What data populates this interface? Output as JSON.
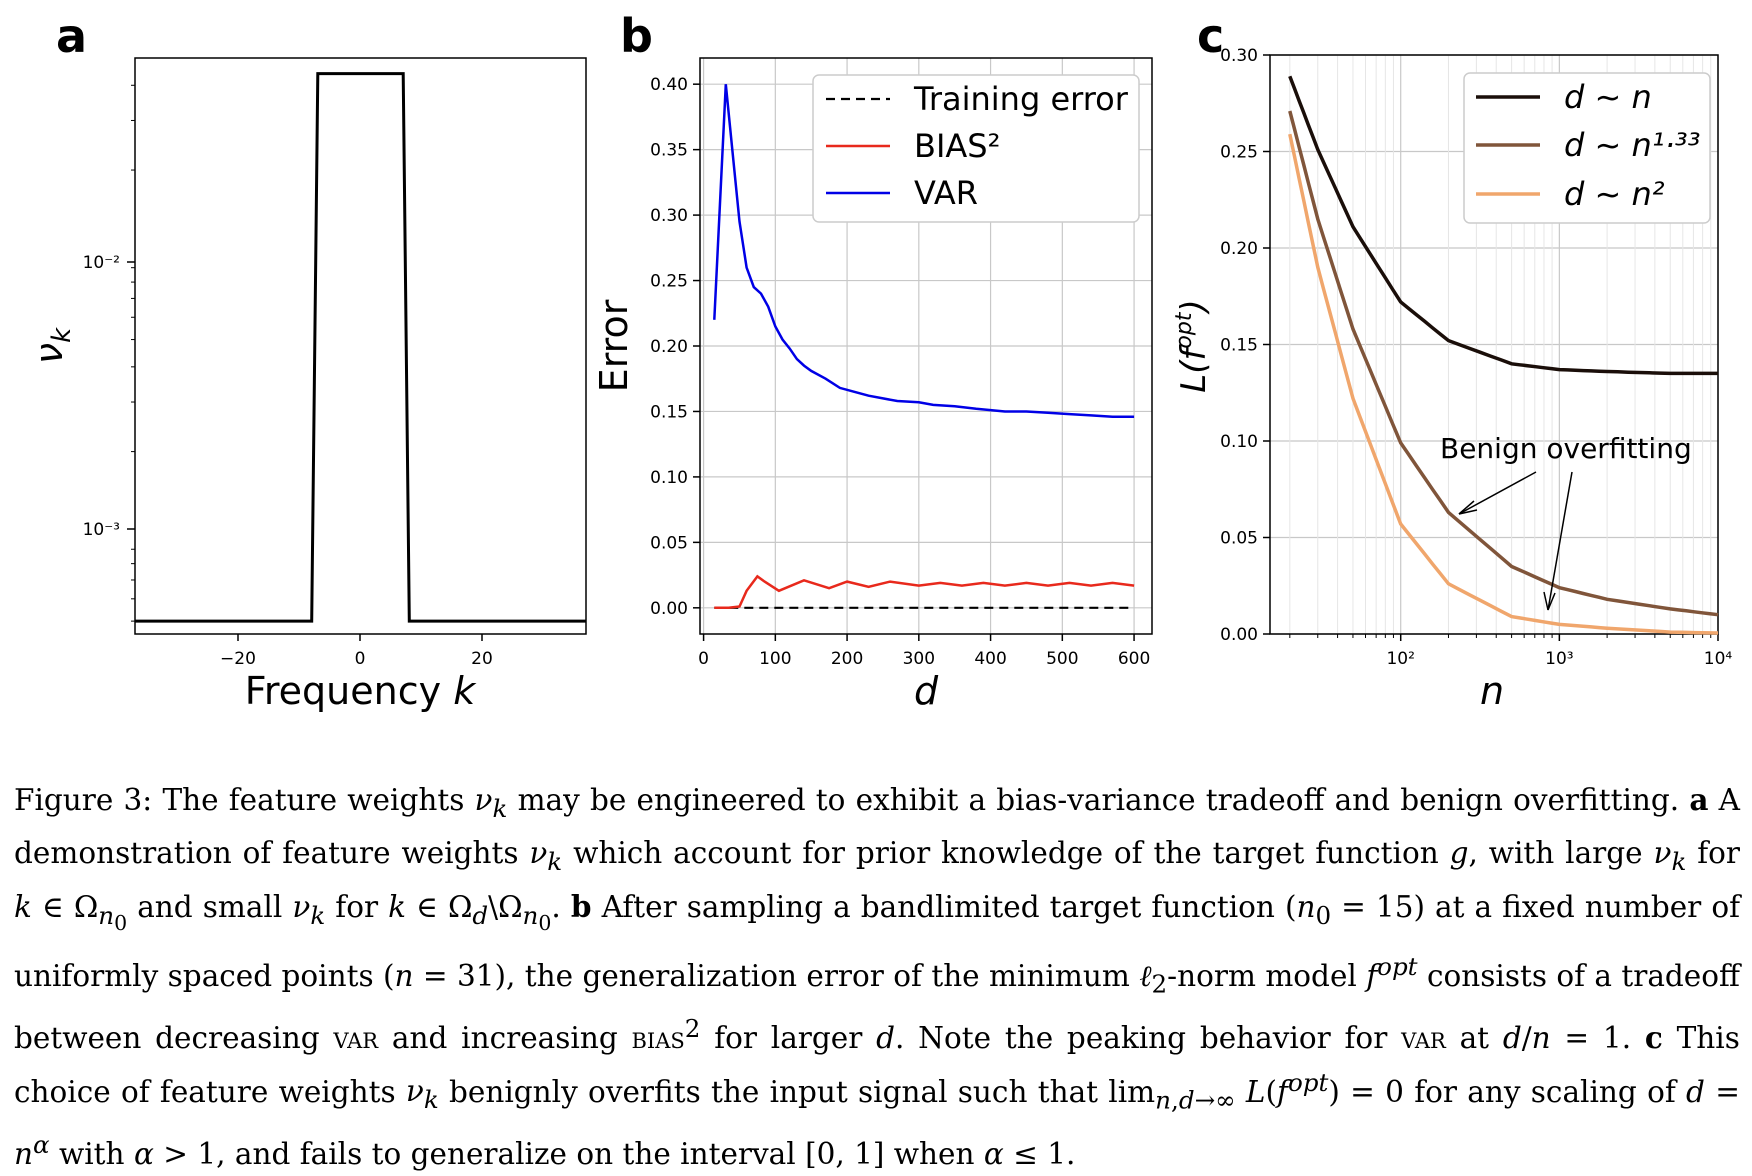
{
  "colors": {
    "black": "#000000",
    "red": "#e8291c",
    "blue": "#0000e6",
    "grid": "#c8c8c8",
    "dn1": "#1a0e09",
    "dn133": "#80553a",
    "dn2": "#f0a66c"
  },
  "panels": {
    "a": {
      "letter": "a",
      "xlabel": "Frequency k",
      "ylabel": "ν_k",
      "yticks": [
        "10⁻²",
        "10⁻³"
      ],
      "xticks": [
        "−20",
        "0",
        "20"
      ]
    },
    "b": {
      "letter": "b",
      "xlabel": "d",
      "ylabel": "Error",
      "yticks": [
        "0.00",
        "0.05",
        "0.10",
        "0.15",
        "0.20",
        "0.25",
        "0.30",
        "0.35",
        "0.40"
      ],
      "xticks": [
        "0",
        "100",
        "200",
        "300",
        "400",
        "500",
        "600"
      ],
      "legend": [
        "Training error",
        "BIAS²",
        "VAR"
      ]
    },
    "c": {
      "letter": "c",
      "xlabel": "n",
      "ylabel": "L(f^opt)",
      "yticks": [
        "0.00",
        "0.05",
        "0.10",
        "0.15",
        "0.20",
        "0.25",
        "0.30"
      ],
      "xticks": [
        "10²",
        "10³",
        "10⁴"
      ],
      "legend": [
        "d ~ n",
        "d ~ n¹·³³",
        "d ~ n²"
      ],
      "annotation": "Benign overfitting"
    }
  },
  "chart_data": [
    {
      "type": "line",
      "panel": "a",
      "title": "",
      "xlabel": "Frequency k",
      "ylabel": "ν_k",
      "yscale": "log",
      "xlim": [
        -37,
        37
      ],
      "ylim": [
        0.00045,
        0.05
      ],
      "series": [
        {
          "name": "ν_k",
          "x": [
            -37,
            -8,
            -7,
            7,
            8,
            37
          ],
          "y": [
            0.0005,
            0.0005,
            0.044,
            0.044,
            0.0005,
            0.0005
          ]
        }
      ]
    },
    {
      "type": "line",
      "panel": "b",
      "xlabel": "d",
      "ylabel": "Error",
      "xlim": [
        -5,
        625
      ],
      "ylim": [
        -0.02,
        0.42
      ],
      "series": [
        {
          "name": "Training error",
          "x": [
            15,
            600
          ],
          "y": [
            0,
            0
          ]
        },
        {
          "name": "BIAS²",
          "x": [
            15,
            35,
            50,
            60,
            75,
            85,
            105,
            140,
            175,
            200,
            230,
            260,
            300,
            330,
            360,
            390,
            420,
            450,
            480,
            510,
            540,
            570,
            600
          ],
          "y": [
            0,
            0,
            0.001,
            0.013,
            0.024,
            0.02,
            0.013,
            0.021,
            0.015,
            0.02,
            0.016,
            0.02,
            0.017,
            0.019,
            0.017,
            0.019,
            0.017,
            0.019,
            0.017,
            0.019,
            0.017,
            0.019,
            0.017
          ]
        },
        {
          "name": "VAR",
          "x": [
            15,
            31,
            40,
            50,
            60,
            70,
            80,
            90,
            100,
            110,
            120,
            130,
            140,
            150,
            170,
            190,
            210,
            230,
            250,
            270,
            300,
            320,
            350,
            380,
            400,
            420,
            450,
            480,
            510,
            540,
            570,
            600
          ],
          "y": [
            0.22,
            0.4,
            0.35,
            0.295,
            0.26,
            0.245,
            0.24,
            0.23,
            0.215,
            0.205,
            0.198,
            0.19,
            0.185,
            0.181,
            0.175,
            0.168,
            0.165,
            0.162,
            0.16,
            0.158,
            0.157,
            0.155,
            0.154,
            0.152,
            0.151,
            0.15,
            0.15,
            0.149,
            0.148,
            0.147,
            0.146,
            0.146
          ]
        }
      ]
    },
    {
      "type": "line",
      "panel": "c",
      "xlabel": "n",
      "ylabel": "L(f^opt)",
      "xscale": "log",
      "xlim": [
        15,
        10000
      ],
      "ylim": [
        0,
        0.3
      ],
      "annotation": "Benign overfitting",
      "series": [
        {
          "name": "d ~ n",
          "x": [
            20,
            30,
            50,
            100,
            200,
            500,
            1000,
            2000,
            5000,
            10000
          ],
          "y": [
            0.289,
            0.251,
            0.211,
            0.172,
            0.152,
            0.14,
            0.137,
            0.136,
            0.135,
            0.135
          ]
        },
        {
          "name": "d ~ n^1.33",
          "x": [
            20,
            30,
            50,
            100,
            200,
            500,
            1000,
            2000,
            5000,
            10000
          ],
          "y": [
            0.271,
            0.215,
            0.158,
            0.099,
            0.063,
            0.035,
            0.024,
            0.018,
            0.013,
            0.01
          ]
        },
        {
          "name": "d ~ n^2",
          "x": [
            20,
            30,
            50,
            100,
            200,
            500,
            1000,
            2000,
            5000,
            10000
          ],
          "y": [
            0.259,
            0.19,
            0.122,
            0.057,
            0.026,
            0.009,
            0.005,
            0.003,
            0.001,
            0.0005
          ]
        }
      ]
    }
  ],
  "caption": {
    "fig_label": "Figure 3:",
    "s1": "The feature weights",
    "s2": "may be engineered to exhibit a bias-variance tradeoff and benign overfitting.",
    "a": "a",
    "s3": "A demonstration of feature weights",
    "s4": "which account for prior knowledge of the target function",
    "s5": ", with large",
    "s6": "for",
    "s7": "and small",
    "s8": "for",
    "b": "b",
    "s9": "After sampling a bandlimited target function (",
    "s10": ") at a fixed number of uniformly spaced points (",
    "s11": "), the generalization error of the minimum",
    "s12": "-norm model",
    "s13": "consists of a tradeoff between decreasing",
    "var": "var",
    "s14": "and increasing",
    "bias": "bias",
    "s15": "for larger",
    "s16": ". Note the peaking behavior for",
    "s17": "at",
    "c": "c",
    "s18": "This choice of feature weights",
    "s19": "benignly overfits the input signal such that",
    "s20": "for any scaling of",
    "s21": "with",
    "s22": ", and fails to generalize on the interval",
    "s23": "when"
  }
}
